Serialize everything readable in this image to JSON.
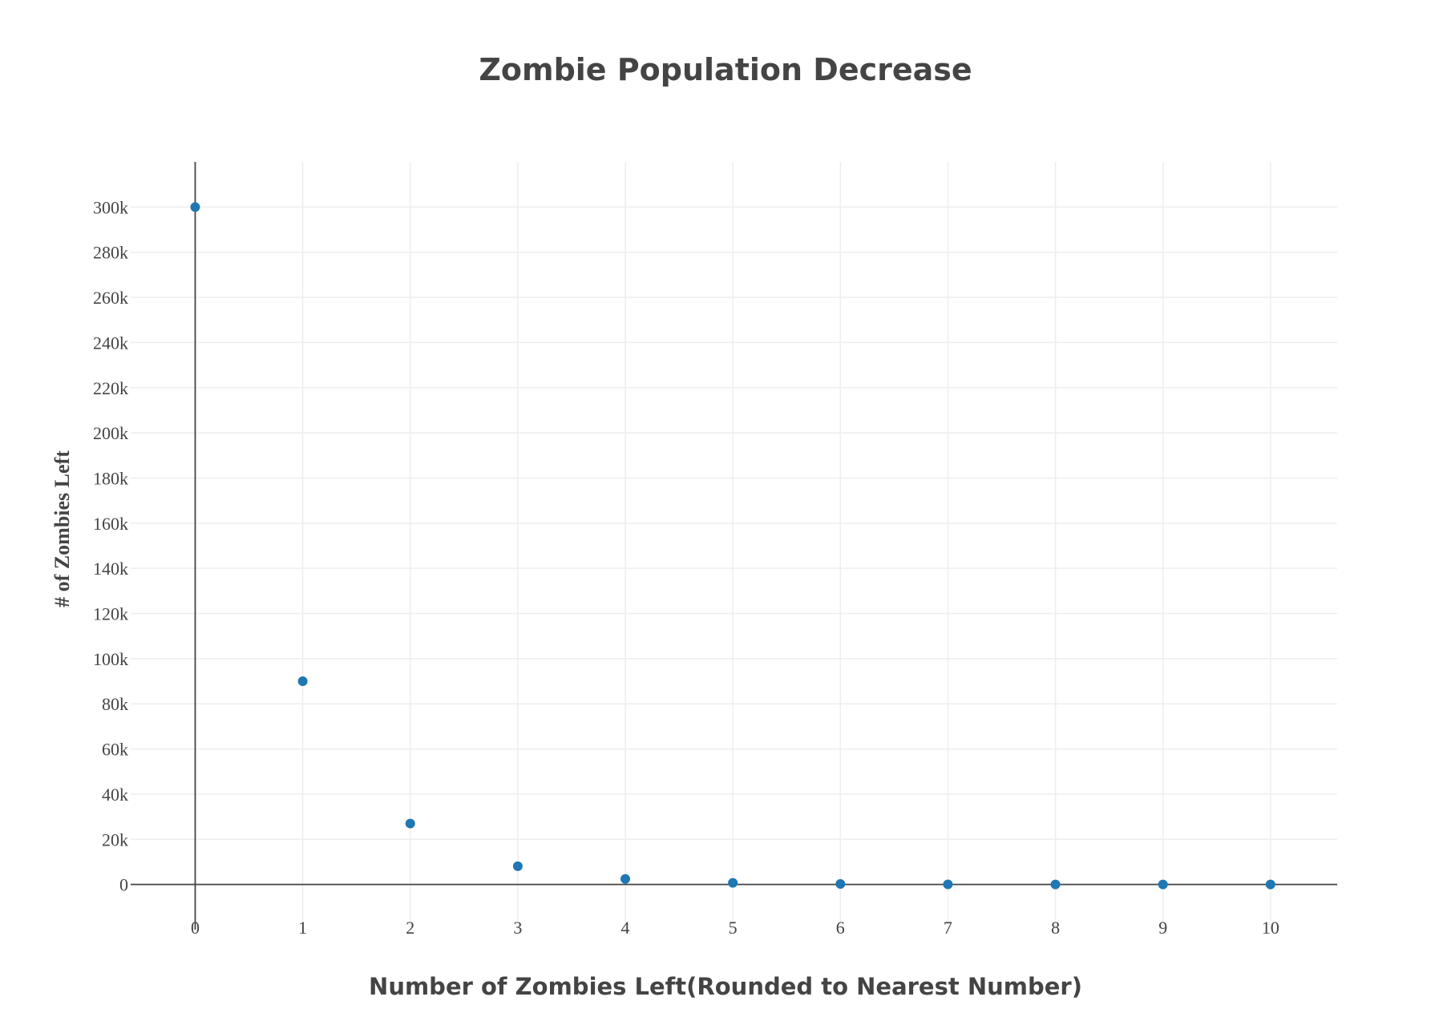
{
  "chart_data": {
    "type": "scatter",
    "title": "Zombie Population Decrease",
    "xlabel": "Number of Zombies Left(Rounded to Nearest Number)",
    "ylabel": "# of Zombies Left",
    "x": [
      0,
      1,
      2,
      3,
      4,
      5,
      6,
      7,
      8,
      9,
      10
    ],
    "y": [
      300000,
      90000,
      27000,
      8100,
      2430,
      729,
      219,
      66,
      20,
      6,
      2
    ],
    "x_ticks": [
      0,
      1,
      2,
      3,
      4,
      5,
      6,
      7,
      8,
      9,
      10
    ],
    "x_tick_labels": [
      "0",
      "1",
      "2",
      "3",
      "4",
      "5",
      "6",
      "7",
      "8",
      "9",
      "10"
    ],
    "y_ticks": [
      0,
      20000,
      40000,
      60000,
      80000,
      100000,
      120000,
      140000,
      160000,
      180000,
      200000,
      220000,
      240000,
      260000,
      280000,
      300000
    ],
    "y_tick_labels": [
      "0",
      "20k",
      "40k",
      "60k",
      "80k",
      "100k",
      "120k",
      "140k",
      "160k",
      "180k",
      "200k",
      "220k",
      "240k",
      "260k",
      "280k",
      "300k"
    ],
    "xlim": [
      -0.6,
      10.62
    ],
    "ylim": [
      -20000,
      320000
    ],
    "grid": true,
    "legend": false,
    "marker_color": "#1f77b4",
    "text_color": "#444444",
    "grid_color": "#eeeeee"
  }
}
